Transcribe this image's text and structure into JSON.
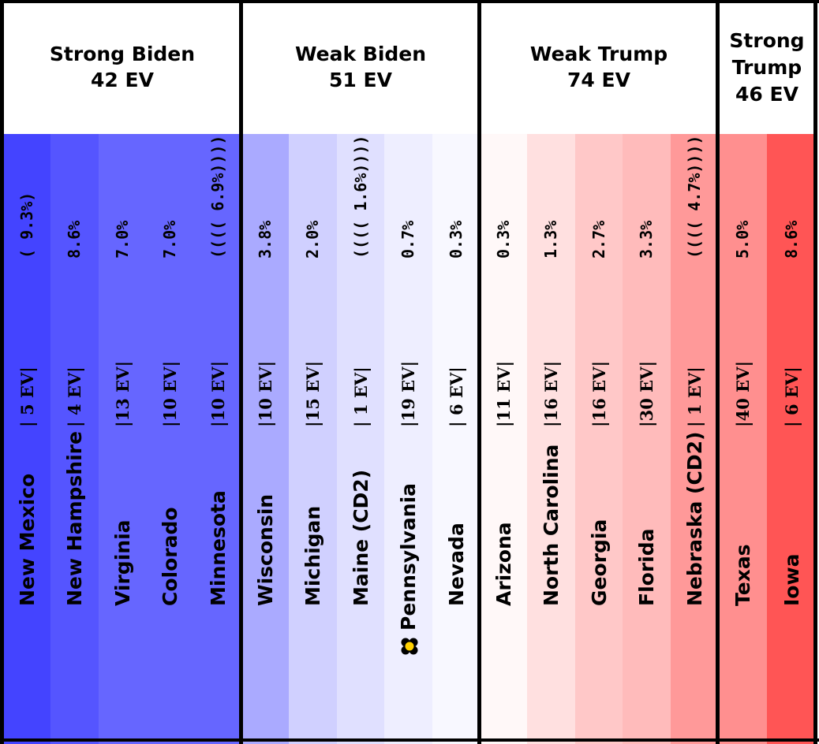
{
  "colors": {
    "tipping_marker_outer": "#000000",
    "tipping_marker_center": "#ffd000"
  },
  "chart_data": {
    "type": "table",
    "groups": [
      {
        "label": "Strong Biden",
        "ev": "42 EV",
        "states": [
          {
            "name": "New Mexico",
            "ev_text": "| 5 EV|",
            "margin_text": "( 9.3%)",
            "color": "#4444ff"
          },
          {
            "name": "New Hampshire",
            "ev_text": "| 4 EV|",
            "margin_text": "8.6%",
            "color": "#5555ff"
          },
          {
            "name": "Virginia",
            "ev_text": "|13 EV|",
            "margin_text": "7.0%",
            "color": "#6666ff"
          },
          {
            "name": "Colorado",
            "ev_text": "|10 EV|",
            "margin_text": "7.0%",
            "color": "#6666ff"
          },
          {
            "name": "Minnesota",
            "ev_text": "|10 EV|",
            "margin_text": "(((( 6.9%))))",
            "color": "#6666ff"
          }
        ]
      },
      {
        "label": "Weak Biden",
        "ev": "51 EV",
        "states": [
          {
            "name": "Wisconsin",
            "ev_text": "|10 EV|",
            "margin_text": "3.8%",
            "color": "#aaaaff"
          },
          {
            "name": "Michigan",
            "ev_text": "|15 EV|",
            "margin_text": "2.0%",
            "color": "#d0d0ff"
          },
          {
            "name": "Maine (CD2)",
            "ev_text": "| 1 EV|",
            "margin_text": "(((( 1.6%))))",
            "color": "#e0e0ff"
          },
          {
            "name": "Pennsylvania",
            "ev_text": "|19 EV|",
            "margin_text": "0.7%",
            "color": "#eeeeff",
            "tipping_point": true
          },
          {
            "name": "Nevada",
            "ev_text": "| 6 EV|",
            "margin_text": "0.3%",
            "color": "#f8f8ff"
          }
        ]
      },
      {
        "label": "Weak Trump",
        "ev": "74 EV",
        "states": [
          {
            "name": "Arizona",
            "ev_text": "|11 EV|",
            "margin_text": "0.3%",
            "color": "#fff8f8"
          },
          {
            "name": "North Carolina",
            "ev_text": "|16 EV|",
            "margin_text": "1.3%",
            "color": "#ffe0e0"
          },
          {
            "name": "Georgia",
            "ev_text": "|16 EV|",
            "margin_text": "2.7%",
            "color": "#ffc8c8"
          },
          {
            "name": "Florida",
            "ev_text": "|30 EV|",
            "margin_text": "3.3%",
            "color": "#ffbbbb"
          },
          {
            "name": "Nebraska (CD2)",
            "ev_text": "| 1 EV|",
            "margin_text": "(((( 4.7%))))",
            "color": "#ff9999"
          }
        ]
      },
      {
        "label": "Strong Trump",
        "ev": "46 EV",
        "states": [
          {
            "name": "Texas",
            "ev_text": "|40 EV|",
            "margin_text": "5.0%",
            "color": "#ff8f8f"
          },
          {
            "name": "Iowa",
            "ev_text": "| 6 EV|",
            "margin_text": "8.6%",
            "color": "#ff5555"
          }
        ]
      }
    ]
  }
}
